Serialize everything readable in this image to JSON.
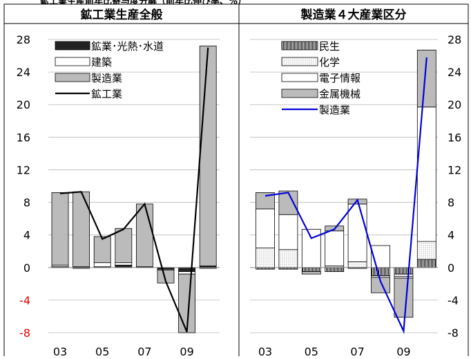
{
  "header": {
    "cut_title": "鉱工業生産前年比寄与度分解（前年比伸び率、%）"
  },
  "chart_data": [
    {
      "type": "bar",
      "title": "鉱工業生産全般",
      "stacked": true,
      "xlabel": "",
      "ylabel": "",
      "x_ticks": [
        "03",
        "05",
        "07",
        "09"
      ],
      "ylim": [
        -8,
        28
      ],
      "y_ticks": [
        "28",
        "24",
        "20",
        "16",
        "12",
        "8",
        "4",
        "0",
        "-4",
        "-8"
      ],
      "negative_tick_color": "#e00000",
      "grid": true,
      "legend_position": "top-center",
      "categories": [
        "03",
        "04",
        "05",
        "06",
        "07",
        "08",
        "09",
        "10"
      ],
      "series": [
        {
          "name": "鉱業･光熱･水道",
          "kind": "bar",
          "color": "#222222",
          "values": [
            0.1,
            0.1,
            0.1,
            0.3,
            0.1,
            -0.2,
            -0.5,
            0.2
          ]
        },
        {
          "name": "建築",
          "kind": "bar",
          "color": "#ffffff",
          "values": [
            0.2,
            -0.1,
            0.5,
            0.3,
            0,
            -0.1,
            -0.3,
            -0.1
          ]
        },
        {
          "name": "製造業",
          "kind": "bar",
          "color": "#bbbbbb",
          "values": [
            8.9,
            9.2,
            3.2,
            4.2,
            7.7,
            -1.6,
            -7.2,
            27.0
          ]
        },
        {
          "name": "鉱工業",
          "kind": "line",
          "color": "#000000",
          "values": [
            9.1,
            9.3,
            3.5,
            4.7,
            7.8,
            -1.7,
            -7.9,
            27.0
          ]
        }
      ]
    },
    {
      "type": "bar",
      "title": "製造業４大産業区分",
      "stacked": true,
      "xlabel": "",
      "ylabel": "",
      "x_ticks": [
        "03",
        "05",
        "07",
        "09"
      ],
      "ylim": [
        -8,
        28
      ],
      "y_ticks": [
        "28",
        "24",
        "20",
        "16",
        "12",
        "8",
        "4",
        "0",
        "-4",
        "-8"
      ],
      "grid": true,
      "legend_position": "top-center",
      "categories": [
        "03",
        "04",
        "05",
        "06",
        "07",
        "08",
        "09",
        "10"
      ],
      "series": [
        {
          "name": "民生",
          "kind": "bar",
          "pattern": "vertical-hatch",
          "color": "#000000",
          "values": [
            -0.2,
            -0.2,
            -0.5,
            -0.5,
            -0.1,
            -1.0,
            -0.8,
            1.0
          ]
        },
        {
          "name": "化学",
          "kind": "bar",
          "pattern": "dots",
          "color": "#cccccc",
          "values": [
            2.4,
            2.2,
            0,
            0.2,
            0.7,
            -0.2,
            -0.3,
            2.2
          ]
        },
        {
          "name": "電子情報",
          "kind": "bar",
          "color": "#ffffff",
          "values": [
            4.8,
            4.3,
            4.7,
            4.3,
            7.1,
            2.7,
            -0.2,
            16.5
          ]
        },
        {
          "name": "金属機械",
          "kind": "bar",
          "color": "#bbbbbb",
          "values": [
            2.0,
            2.9,
            -0.3,
            0.6,
            0.6,
            -1.9,
            -4.8,
            7.0
          ]
        },
        {
          "name": "製造業",
          "kind": "line",
          "color": "#0000dd",
          "values": [
            8.8,
            9.2,
            3.6,
            4.7,
            8.3,
            -1.7,
            -7.8,
            25.8
          ]
        }
      ]
    }
  ]
}
